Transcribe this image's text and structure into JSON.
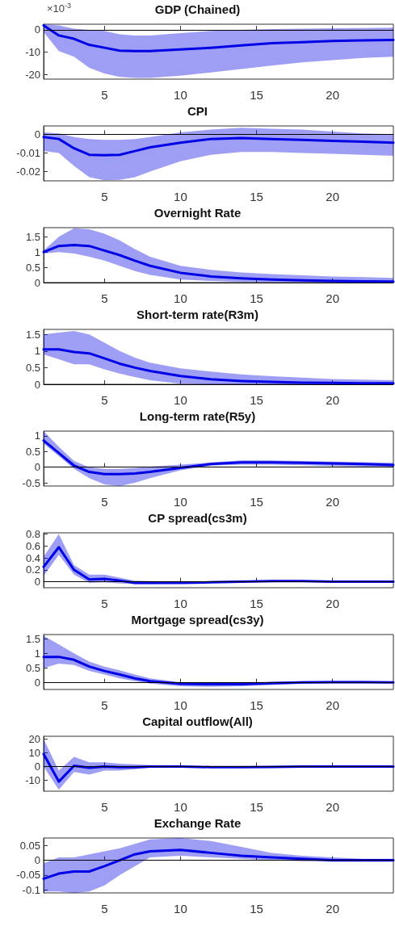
{
  "chart_data": [
    {
      "type": "line",
      "title": "GDP (Chained)",
      "annotations": [
        "×10$^{-3}$"
      ],
      "xlim": [
        1,
        24
      ],
      "xticks": [
        5,
        10,
        15,
        20
      ],
      "ylim": [
        -22,
        2.5
      ],
      "yticks": [
        -20,
        -10,
        0
      ],
      "marker": "none",
      "line_style": "solid",
      "ref_lines": [
        {
          "axis": "y",
          "value": 0,
          "color": "#000000"
        }
      ],
      "series": [
        {
          "color": "#0000e6",
          "x": [
            1,
            2,
            3,
            4,
            5,
            6,
            7,
            8,
            10,
            12,
            14,
            16,
            18,
            20,
            22,
            24
          ],
          "values": [
            2,
            -2.5,
            -4,
            -6.7,
            -8,
            -9.3,
            -9.5,
            -9.5,
            -8.8,
            -8,
            -7,
            -6,
            -5.5,
            -5,
            -4.7,
            -4.5
          ],
          "lower": [
            -1,
            -9.5,
            -12,
            -17,
            -19.5,
            -21,
            -21.5,
            -21.5,
            -20.5,
            -19,
            -17.5,
            -16,
            -14.5,
            -13.5,
            -12.5,
            -12
          ],
          "upper": [
            2.5,
            2,
            0.5,
            0,
            -0.5,
            -2,
            -2.5,
            -2.5,
            -1.5,
            -0.5,
            0,
            0.3,
            0.5,
            0.7,
            0.8,
            1
          ]
        }
      ]
    },
    {
      "type": "line",
      "title": "CPI",
      "xlim": [
        1,
        24
      ],
      "xticks": [
        5,
        10,
        15,
        20
      ],
      "ylim": [
        -0.025,
        0.0045
      ],
      "yticks": [
        -0.02,
        -0.01,
        0
      ],
      "marker": "none",
      "line_style": "solid",
      "ref_lines": [
        {
          "axis": "y",
          "value": 0,
          "color": "#000000"
        }
      ],
      "series": [
        {
          "color": "#0000e6",
          "x": [
            1,
            2,
            3,
            4,
            5,
            6,
            7,
            8,
            10,
            12,
            14,
            16,
            18,
            20,
            22,
            24
          ],
          "values": [
            -0.0015,
            -0.0025,
            -0.0075,
            -0.011,
            -0.0112,
            -0.011,
            -0.009,
            -0.007,
            -0.0045,
            -0.0025,
            -0.002,
            -0.0025,
            -0.003,
            -0.0035,
            -0.004,
            -0.0045
          ],
          "lower": [
            -0.009,
            -0.01,
            -0.017,
            -0.023,
            -0.0247,
            -0.0245,
            -0.023,
            -0.02,
            -0.0145,
            -0.011,
            -0.0095,
            -0.0095,
            -0.01,
            -0.0105,
            -0.011,
            -0.0115
          ],
          "upper": [
            0.001,
            0.0005,
            -0.0015,
            -0.0025,
            -0.003,
            -0.003,
            -0.0025,
            -0.0015,
            0.001,
            0.0025,
            0.0035,
            0.003,
            0.0025,
            0.0015,
            0.0005,
            0
          ]
        }
      ]
    },
    {
      "type": "line",
      "title": "Overnight Rate",
      "xlim": [
        1,
        24
      ],
      "xticks": [
        5,
        10,
        15,
        20
      ],
      "ylim": [
        0,
        1.8
      ],
      "yticks": [
        0,
        0.5,
        1,
        1.5
      ],
      "marker": "none",
      "line_style": "solid",
      "ref_lines": [
        {
          "axis": "y",
          "value": 0,
          "color": "#000000"
        }
      ],
      "series": [
        {
          "color": "#0000e6",
          "x": [
            1,
            2,
            3,
            4,
            5,
            6,
            7,
            8,
            10,
            12,
            14,
            16,
            18,
            20,
            22,
            24
          ],
          "values": [
            1,
            1.2,
            1.23,
            1.2,
            1.05,
            0.9,
            0.72,
            0.55,
            0.32,
            0.2,
            0.14,
            0.1,
            0.07,
            0.05,
            0.04,
            0.03
          ],
          "lower": [
            0.95,
            1,
            0.95,
            0.85,
            0.72,
            0.55,
            0.38,
            0.25,
            0.1,
            0.05,
            0.02,
            0.01,
            0.01,
            0,
            0,
            0
          ],
          "upper": [
            1.05,
            1.5,
            1.78,
            1.75,
            1.6,
            1.38,
            1.1,
            0.85,
            0.55,
            0.42,
            0.33,
            0.28,
            0.24,
            0.2,
            0.18,
            0.15
          ]
        }
      ]
    },
    {
      "type": "line",
      "title": "Short-term rate(R3m)",
      "xlim": [
        1,
        24
      ],
      "xticks": [
        5,
        10,
        15,
        20
      ],
      "ylim": [
        0,
        1.65
      ],
      "yticks": [
        0,
        0.5,
        1,
        1.5
      ],
      "marker": "none",
      "line_style": "solid",
      "ref_lines": [
        {
          "axis": "y",
          "value": 0,
          "color": "#000000"
        }
      ],
      "series": [
        {
          "color": "#0000e6",
          "x": [
            1,
            2,
            3,
            4,
            5,
            6,
            7,
            8,
            10,
            12,
            14,
            16,
            18,
            20,
            22,
            24
          ],
          "values": [
            1.05,
            1.05,
            0.97,
            0.93,
            0.78,
            0.62,
            0.5,
            0.4,
            0.25,
            0.15,
            0.1,
            0.07,
            0.05,
            0.04,
            0.03,
            0.03
          ],
          "lower": [
            0.9,
            0.75,
            0.6,
            0.6,
            0.45,
            0.32,
            0.22,
            0.12,
            0.02,
            0,
            0,
            0,
            0,
            0,
            0,
            0
          ],
          "upper": [
            1.5,
            1.55,
            1.6,
            1.5,
            1.25,
            1,
            0.8,
            0.65,
            0.48,
            0.38,
            0.3,
            0.24,
            0.2,
            0.16,
            0.14,
            0.12
          ]
        }
      ]
    },
    {
      "type": "line",
      "title": "Long-term rate(R5y)",
      "xlim": [
        1,
        24
      ],
      "xticks": [
        5,
        10,
        15,
        20
      ],
      "ylim": [
        -0.6,
        1.15
      ],
      "yticks": [
        -0.5,
        0,
        0.5,
        1
      ],
      "marker": "none",
      "line_style": "solid",
      "ref_lines": [
        {
          "axis": "y",
          "value": 0,
          "color": "#000000"
        }
      ],
      "series": [
        {
          "color": "#0000e6",
          "x": [
            1,
            2,
            3,
            4,
            5,
            6,
            7,
            8,
            10,
            12,
            14,
            16,
            18,
            20,
            22,
            24
          ],
          "values": [
            0.85,
            0.45,
            0.05,
            -0.15,
            -0.22,
            -0.22,
            -0.2,
            -0.15,
            -0.02,
            0.1,
            0.15,
            0.15,
            0.14,
            0.12,
            0.1,
            0.07
          ],
          "lower": [
            0.75,
            0.35,
            -0.05,
            -0.35,
            -0.55,
            -0.6,
            -0.5,
            -0.35,
            -0.1,
            0.05,
            0.08,
            0.08,
            0.06,
            0.04,
            0.02,
            0
          ],
          "upper": [
            1.15,
            0.65,
            0.2,
            0,
            -0.05,
            -0.05,
            -0.03,
            0.02,
            0.08,
            0.15,
            0.22,
            0.22,
            0.2,
            0.18,
            0.16,
            0.14
          ]
        }
      ]
    },
    {
      "type": "line",
      "title": "CP spread(cs3m)",
      "xlim": [
        1,
        24
      ],
      "xticks": [
        5,
        10,
        15,
        20
      ],
      "ylim": [
        -0.1,
        0.82
      ],
      "yticks": [
        0,
        0.2,
        0.4,
        0.6,
        0.8
      ],
      "marker": "none",
      "line_style": "solid",
      "ref_lines": [
        {
          "axis": "y",
          "value": 0,
          "color": "#000000"
        }
      ],
      "series": [
        {
          "color": "#0000e6",
          "x": [
            1,
            2,
            3,
            4,
            5,
            6,
            7,
            8,
            10,
            12,
            14,
            16,
            18,
            20,
            22,
            24
          ],
          "values": [
            0.25,
            0.58,
            0.2,
            0.04,
            0.05,
            0.02,
            -0.02,
            -0.02,
            -0.02,
            -0.01,
            0,
            0.01,
            0.01,
            0,
            0,
            0
          ],
          "lower": [
            0.1,
            0.45,
            0.12,
            -0.02,
            -0.01,
            -0.03,
            -0.04,
            -0.04,
            -0.03,
            -0.02,
            -0.01,
            -0.01,
            0,
            -0.01,
            -0.01,
            -0.01
          ],
          "upper": [
            0.42,
            0.8,
            0.28,
            0.12,
            0.12,
            0.07,
            0.02,
            0.01,
            0,
            0.01,
            0.02,
            0.02,
            0.02,
            0.02,
            0.01,
            0.01
          ]
        }
      ]
    },
    {
      "type": "line",
      "title": "Mortgage spread(cs3y)",
      "xlim": [
        1,
        24
      ],
      "xticks": [
        5,
        10,
        15,
        20
      ],
      "ylim": [
        -0.23,
        1.64
      ],
      "yticks": [
        0,
        0.5,
        1,
        1.5
      ],
      "marker": "none",
      "line_style": "solid",
      "ref_lines": [
        {
          "axis": "y",
          "value": 0,
          "color": "#000000"
        }
      ],
      "series": [
        {
          "color": "#0000e6",
          "x": [
            1,
            2,
            3,
            4,
            5,
            6,
            7,
            8,
            10,
            12,
            14,
            16,
            18,
            20,
            22,
            24
          ],
          "values": [
            0.88,
            0.88,
            0.78,
            0.55,
            0.4,
            0.28,
            0.15,
            0.05,
            -0.04,
            -0.05,
            -0.05,
            -0.02,
            0.01,
            0.02,
            0.02,
            0.01
          ],
          "lower": [
            0.5,
            0.65,
            0.6,
            0.4,
            0.28,
            0.15,
            0.05,
            -0.03,
            -0.12,
            -0.14,
            -0.12,
            -0.08,
            -0.04,
            -0.02,
            -0.02,
            -0.02
          ],
          "upper": [
            1.6,
            1.3,
            1,
            0.72,
            0.55,
            0.42,
            0.28,
            0.15,
            0.02,
            0.02,
            0.02,
            0.03,
            0.05,
            0.06,
            0.06,
            0.04
          ]
        }
      ]
    },
    {
      "type": "line",
      "title": "Capital outflow(All)",
      "xlim": [
        1,
        24
      ],
      "xticks": [
        5,
        10,
        15,
        20
      ],
      "ylim": [
        -18,
        22
      ],
      "yticks": [
        -10,
        0,
        10,
        20
      ],
      "marker": "none",
      "line_style": "solid",
      "ref_lines": [
        {
          "axis": "y",
          "value": 0,
          "color": "#000000"
        }
      ],
      "series": [
        {
          "color": "#0000e6",
          "x": [
            1,
            2,
            3,
            4,
            5,
            6,
            7,
            8,
            10,
            12,
            14,
            16,
            18,
            20,
            22,
            24
          ],
          "values": [
            9,
            -11,
            0.5,
            -1,
            0,
            -0.5,
            -0.5,
            0,
            0,
            -0.5,
            -0.5,
            -0.3,
            0,
            0,
            0,
            0
          ],
          "lower": [
            0,
            -17,
            -4,
            -6,
            -3,
            -3,
            -2,
            -1,
            -0.5,
            -1,
            -0.8,
            -0.6,
            -0.3,
            -0.3,
            -0.2,
            -0.2
          ],
          "upper": [
            20,
            -3,
            7,
            3,
            3,
            2,
            1.5,
            1,
            0.5,
            0.3,
            0.2,
            0.2,
            0.3,
            0.3,
            0.2,
            0.2
          ]
        }
      ]
    },
    {
      "type": "line",
      "title": "Exchange Rate",
      "xlim": [
        1,
        24
      ],
      "xticks": [
        5,
        10,
        15,
        20
      ],
      "ylim": [
        -0.11,
        0.075
      ],
      "yticks": [
        -0.1,
        -0.05,
        0,
        0.05
      ],
      "marker": "none",
      "line_style": "solid",
      "ref_lines": [
        {
          "axis": "y",
          "value": 0,
          "color": "#000000"
        }
      ],
      "series": [
        {
          "color": "#0000e6",
          "x": [
            1,
            2,
            3,
            4,
            5,
            6,
            7,
            8,
            10,
            12,
            14,
            16,
            18,
            20,
            22,
            24
          ],
          "values": [
            -0.062,
            -0.045,
            -0.038,
            -0.038,
            -0.02,
            0,
            0.02,
            0.03,
            0.035,
            0.025,
            0.015,
            0.01,
            0.005,
            0,
            0,
            0
          ],
          "lower": [
            -0.105,
            -0.105,
            -0.11,
            -0.105,
            -0.085,
            -0.05,
            -0.02,
            0.01,
            0.015,
            0.01,
            0.005,
            0,
            -0.003,
            -0.005,
            -0.005,
            -0.005
          ],
          "upper": [
            -0.01,
            0.01,
            0.01,
            0.02,
            0.03,
            0.04,
            0.055,
            0.07,
            0.075,
            0.065,
            0.045,
            0.025,
            0.015,
            0.01,
            0.005,
            0.005
          ]
        }
      ]
    }
  ]
}
